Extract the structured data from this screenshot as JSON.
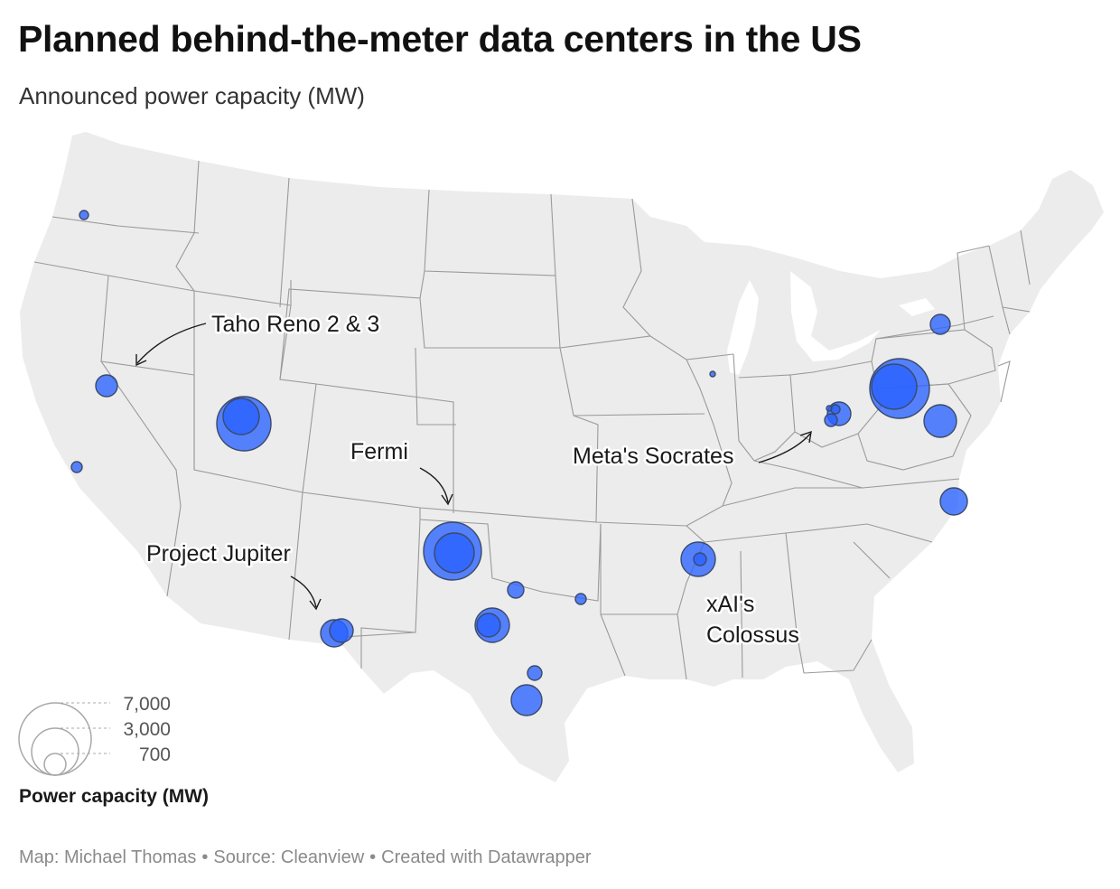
{
  "header": {
    "title": "Planned behind-the-meter data centers in the US",
    "subtitle": "Announced power capacity (MW)"
  },
  "map": {
    "region": "United States (contiguous)",
    "land_color": "#ececec",
    "border_color": "#9a9a9a",
    "bubble_fill": "#2962ff",
    "bubble_stroke": "#3b4a6b",
    "annotations": [
      {
        "label": "Taho Reno 2 & 3"
      },
      {
        "label": "Fermi"
      },
      {
        "label": "Meta's Socrates"
      },
      {
        "label": "Project Jupiter"
      },
      {
        "label_line1": "xAI's",
        "label_line2": "Colossus"
      }
    ]
  },
  "legend": {
    "title": "Power capacity (MW)",
    "values": [
      "7,000",
      "3,000",
      "700"
    ]
  },
  "footer": {
    "map_credit": "Map: Michael Thomas",
    "source": "Source: Cleanview",
    "created": "Created with Datawrapper",
    "separator": "•"
  }
}
